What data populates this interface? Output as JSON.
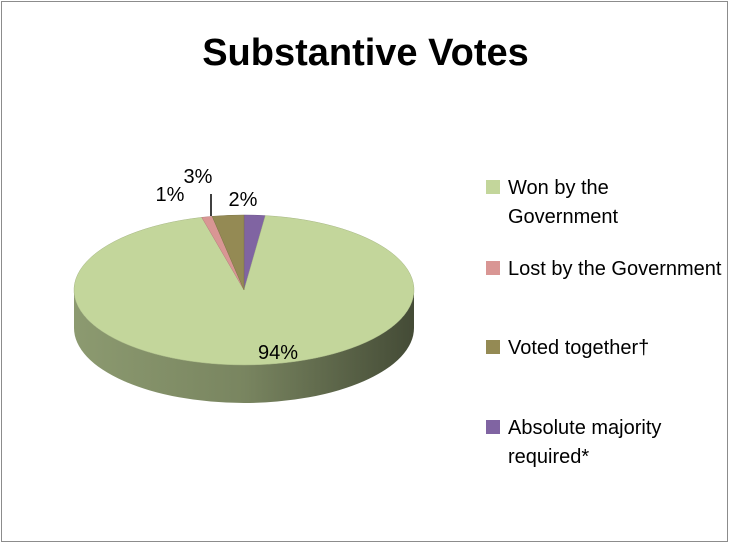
{
  "chart_data": {
    "type": "pie",
    "title": "Substantive Votes",
    "slices": [
      {
        "label": "Won by the Government",
        "value": 94,
        "display": "94%",
        "color": "#c3d69b"
      },
      {
        "label": "Lost by the Government",
        "value": 1,
        "display": "1%",
        "color": "#d99694"
      },
      {
        "label": "Voted together†",
        "value": 3,
        "display": "3%",
        "color": "#948a54"
      },
      {
        "label": "Absolute majority required*",
        "value": 2,
        "display": "2%",
        "color": "#8064a2"
      }
    ],
    "legend_position": "right",
    "three_d": true
  }
}
